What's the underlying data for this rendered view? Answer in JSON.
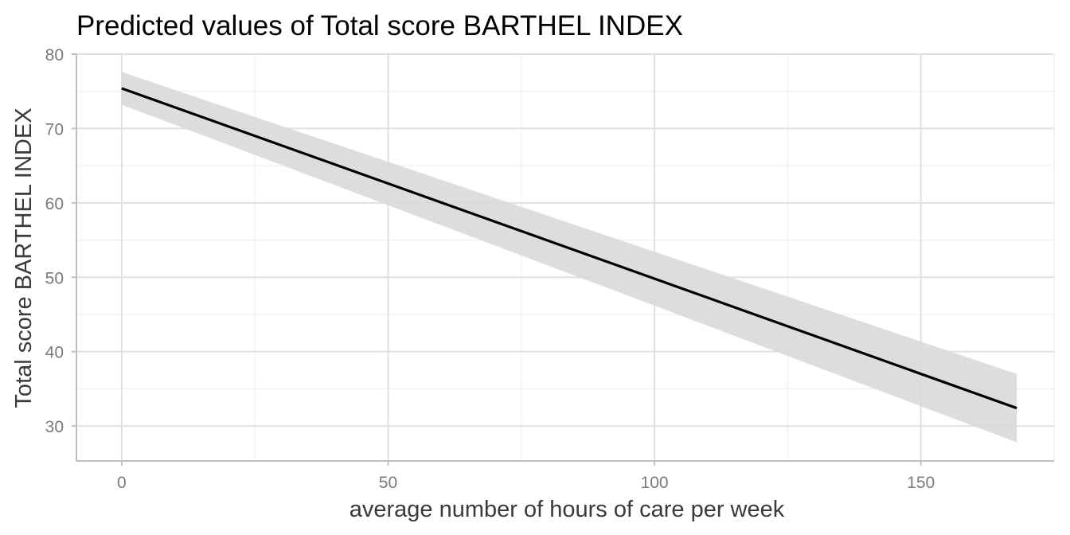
{
  "chart_data": {
    "type": "line",
    "title": "Predicted values of Total score BARTHEL INDEX",
    "xlabel": "average number of hours of care per week",
    "ylabel": "Total score BARTHEL INDEX",
    "xlim": [
      -8.5,
      175
    ],
    "ylim": [
      25.3,
      80
    ],
    "x_ticks": [
      0,
      50,
      100,
      150
    ],
    "x_tick_labels": [
      "0",
      "50",
      "100",
      "150"
    ],
    "y_ticks": [
      30,
      40,
      50,
      60,
      70,
      80
    ],
    "y_tick_labels": [
      "30",
      "40",
      "50",
      "60",
      "70",
      "80"
    ],
    "grid": true,
    "series": [
      {
        "x": [
          0,
          168
        ],
        "y": [
          75.4,
          32.4
        ],
        "ci_lower": [
          73.2,
          27.8
        ],
        "ci_upper": [
          77.6,
          37.0
        ],
        "line_color": "#000000",
        "band_color": "#d9d9d9"
      }
    ]
  }
}
